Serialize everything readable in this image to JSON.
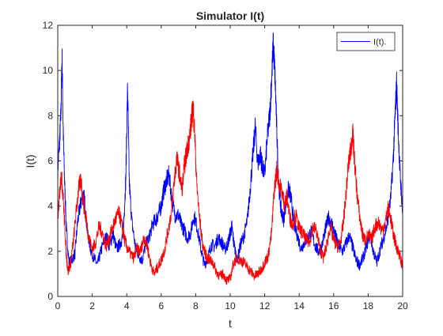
{
  "chart_data": {
    "type": "line",
    "title": "Simulator  I(t)",
    "xlabel": "t",
    "ylabel": "I(t)",
    "xlim": [
      0,
      20
    ],
    "ylim": [
      0,
      12
    ],
    "xticks": [
      0,
      2,
      4,
      6,
      8,
      10,
      12,
      14,
      16,
      18,
      20
    ],
    "yticks": [
      0,
      2,
      4,
      6,
      8,
      10,
      12
    ],
    "grid": false,
    "legend": {
      "position": "top-right",
      "entries": [
        "I(t)."
      ]
    },
    "series": [
      {
        "name": "I(t).",
        "color": "#0000ff",
        "points": [
          [
            0.0,
            5.6
          ],
          [
            0.1,
            6.8
          ],
          [
            0.18,
            8.0
          ],
          [
            0.25,
            10.6
          ],
          [
            0.32,
            7.2
          ],
          [
            0.4,
            5.0
          ],
          [
            0.5,
            3.0
          ],
          [
            0.65,
            1.5
          ],
          [
            0.8,
            1.6
          ],
          [
            1.0,
            1.9
          ],
          [
            1.15,
            3.3
          ],
          [
            1.3,
            4.0
          ],
          [
            1.45,
            4.5
          ],
          [
            1.55,
            4.3
          ],
          [
            1.7,
            3.0
          ],
          [
            1.9,
            2.1
          ],
          [
            2.1,
            1.7
          ],
          [
            2.3,
            1.4
          ],
          [
            2.5,
            2.0
          ],
          [
            2.7,
            2.5
          ],
          [
            2.85,
            2.6
          ],
          [
            3.0,
            2.2
          ],
          [
            3.2,
            2.8
          ],
          [
            3.4,
            2.1
          ],
          [
            3.6,
            2.3
          ],
          [
            3.75,
            2.6
          ],
          [
            3.85,
            3.6
          ],
          [
            3.95,
            5.3
          ],
          [
            4.05,
            9.3
          ],
          [
            4.15,
            5.0
          ],
          [
            4.3,
            3.3
          ],
          [
            4.5,
            2.2
          ],
          [
            4.7,
            1.8
          ],
          [
            4.9,
            1.6
          ],
          [
            5.1,
            2.3
          ],
          [
            5.3,
            2.6
          ],
          [
            5.5,
            3.2
          ],
          [
            5.7,
            3.4
          ],
          [
            5.85,
            3.7
          ],
          [
            6.0,
            4.0
          ],
          [
            6.15,
            4.7
          ],
          [
            6.3,
            5.1
          ],
          [
            6.45,
            5.4
          ],
          [
            6.6,
            4.4
          ],
          [
            6.8,
            3.6
          ],
          [
            7.0,
            3.6
          ],
          [
            7.15,
            3.2
          ],
          [
            7.3,
            3.0
          ],
          [
            7.5,
            2.6
          ],
          [
            7.7,
            2.8
          ],
          [
            7.9,
            3.6
          ],
          [
            8.1,
            3.0
          ],
          [
            8.3,
            2.1
          ],
          [
            8.5,
            1.4
          ],
          [
            8.7,
            1.7
          ],
          [
            8.9,
            2.3
          ],
          [
            9.1,
            2.2
          ],
          [
            9.3,
            2.6
          ],
          [
            9.5,
            2.4
          ],
          [
            9.7,
            2.1
          ],
          [
            9.85,
            2.3
          ],
          [
            10.0,
            2.8
          ],
          [
            10.1,
            3.1
          ],
          [
            10.2,
            2.4
          ],
          [
            10.4,
            1.6
          ],
          [
            10.6,
            2.3
          ],
          [
            10.8,
            2.7
          ],
          [
            11.0,
            3.4
          ],
          [
            11.15,
            4.7
          ],
          [
            11.3,
            6.1
          ],
          [
            11.45,
            7.5
          ],
          [
            11.6,
            5.9
          ],
          [
            11.75,
            6.3
          ],
          [
            11.85,
            5.8
          ],
          [
            12.0,
            5.4
          ],
          [
            12.15,
            7.0
          ],
          [
            12.3,
            8.1
          ],
          [
            12.4,
            9.6
          ],
          [
            12.5,
            11.2
          ],
          [
            12.6,
            9.7
          ],
          [
            12.7,
            7.4
          ],
          [
            12.8,
            5.1
          ],
          [
            12.95,
            3.8
          ],
          [
            13.1,
            3.4
          ],
          [
            13.25,
            4.3
          ],
          [
            13.4,
            4.8
          ],
          [
            13.55,
            4.2
          ],
          [
            13.7,
            3.2
          ],
          [
            13.9,
            2.7
          ],
          [
            14.1,
            2.1
          ],
          [
            14.3,
            2.4
          ],
          [
            14.5,
            2.6
          ],
          [
            14.7,
            2.9
          ],
          [
            14.9,
            2.3
          ],
          [
            15.1,
            2.0
          ],
          [
            15.3,
            2.2
          ],
          [
            15.5,
            2.9
          ],
          [
            15.7,
            3.5
          ],
          [
            15.9,
            3.2
          ],
          [
            16.1,
            2.7
          ],
          [
            16.3,
            2.2
          ],
          [
            16.5,
            2.0
          ],
          [
            16.7,
            2.3
          ],
          [
            16.9,
            2.7
          ],
          [
            17.1,
            2.2
          ],
          [
            17.3,
            1.6
          ],
          [
            17.5,
            1.4
          ],
          [
            17.7,
            1.7
          ],
          [
            17.9,
            2.2
          ],
          [
            18.1,
            2.8
          ],
          [
            18.3,
            2.0
          ],
          [
            18.5,
            1.5
          ],
          [
            18.7,
            2.1
          ],
          [
            18.9,
            2.6
          ],
          [
            19.1,
            3.2
          ],
          [
            19.3,
            4.3
          ],
          [
            19.45,
            6.0
          ],
          [
            19.55,
            7.8
          ],
          [
            19.65,
            9.4
          ],
          [
            19.75,
            7.2
          ],
          [
            19.85,
            5.4
          ],
          [
            19.95,
            4.3
          ],
          [
            20.0,
            3.6
          ]
        ]
      },
      {
        "name": "",
        "color": "#ff0000",
        "points": [
          [
            0.0,
            3.4
          ],
          [
            0.1,
            4.5
          ],
          [
            0.2,
            5.4
          ],
          [
            0.3,
            4.6
          ],
          [
            0.4,
            3.2
          ],
          [
            0.5,
            1.8
          ],
          [
            0.6,
            1.1
          ],
          [
            0.75,
            1.5
          ],
          [
            0.9,
            2.4
          ],
          [
            1.05,
            3.6
          ],
          [
            1.2,
            4.7
          ],
          [
            1.35,
            5.2
          ],
          [
            1.5,
            4.1
          ],
          [
            1.65,
            3.4
          ],
          [
            1.8,
            2.6
          ],
          [
            2.0,
            2.1
          ],
          [
            2.2,
            2.4
          ],
          [
            2.4,
            3.1
          ],
          [
            2.6,
            2.8
          ],
          [
            2.8,
            2.2
          ],
          [
            3.0,
            2.6
          ],
          [
            3.2,
            3.1
          ],
          [
            3.4,
            3.5
          ],
          [
            3.55,
            3.7
          ],
          [
            3.7,
            3.2
          ],
          [
            3.85,
            2.6
          ],
          [
            4.0,
            2.2
          ],
          [
            4.2,
            1.9
          ],
          [
            4.4,
            1.7
          ],
          [
            4.6,
            2.1
          ],
          [
            4.8,
            2.0
          ],
          [
            5.0,
            2.6
          ],
          [
            5.2,
            2.2
          ],
          [
            5.4,
            1.4
          ],
          [
            5.6,
            1.0
          ],
          [
            5.8,
            1.3
          ],
          [
            6.0,
            1.6
          ],
          [
            6.2,
            2.1
          ],
          [
            6.4,
            2.9
          ],
          [
            6.6,
            3.8
          ],
          [
            6.75,
            5.1
          ],
          [
            6.9,
            6.1
          ],
          [
            7.05,
            5.5
          ],
          [
            7.2,
            4.7
          ],
          [
            7.35,
            5.8
          ],
          [
            7.5,
            6.5
          ],
          [
            7.65,
            7.1
          ],
          [
            7.75,
            7.8
          ],
          [
            7.85,
            8.4
          ],
          [
            7.95,
            7.1
          ],
          [
            8.05,
            5.1
          ],
          [
            8.2,
            3.6
          ],
          [
            8.4,
            2.3
          ],
          [
            8.6,
            1.8
          ],
          [
            8.8,
            1.6
          ],
          [
            9.0,
            1.5
          ],
          [
            9.2,
            1.1
          ],
          [
            9.4,
            0.9
          ],
          [
            9.6,
            1.0
          ],
          [
            9.8,
            0.7
          ],
          [
            10.0,
            0.8
          ],
          [
            10.2,
            1.5
          ],
          [
            10.4,
            1.7
          ],
          [
            10.6,
            1.6
          ],
          [
            10.8,
            1.5
          ],
          [
            11.0,
            1.3
          ],
          [
            11.2,
            1.1
          ],
          [
            11.4,
            0.9
          ],
          [
            11.6,
            1.0
          ],
          [
            11.8,
            1.2
          ],
          [
            12.0,
            1.5
          ],
          [
            12.2,
            1.8
          ],
          [
            12.4,
            2.8
          ],
          [
            12.55,
            4.7
          ],
          [
            12.7,
            5.6
          ],
          [
            12.85,
            5.0
          ],
          [
            13.0,
            4.6
          ],
          [
            13.15,
            4.1
          ],
          [
            13.3,
            4.4
          ],
          [
            13.45,
            3.5
          ],
          [
            13.6,
            3.2
          ],
          [
            13.8,
            3.6
          ],
          [
            14.0,
            3.0
          ],
          [
            14.2,
            2.8
          ],
          [
            14.4,
            2.5
          ],
          [
            14.6,
            2.4
          ],
          [
            14.8,
            3.1
          ],
          [
            15.0,
            2.9
          ],
          [
            15.2,
            2.1
          ],
          [
            15.4,
            1.7
          ],
          [
            15.6,
            2.3
          ],
          [
            15.8,
            3.1
          ],
          [
            16.0,
            2.5
          ],
          [
            16.2,
            2.2
          ],
          [
            16.4,
            2.4
          ],
          [
            16.55,
            3.2
          ],
          [
            16.7,
            4.4
          ],
          [
            16.85,
            5.8
          ],
          [
            17.0,
            6.5
          ],
          [
            17.1,
            7.3
          ],
          [
            17.2,
            6.1
          ],
          [
            17.35,
            4.6
          ],
          [
            17.5,
            3.6
          ],
          [
            17.65,
            2.8
          ],
          [
            17.8,
            2.5
          ],
          [
            18.0,
            2.7
          ],
          [
            18.2,
            2.5
          ],
          [
            18.4,
            3.1
          ],
          [
            18.6,
            3.3
          ],
          [
            18.8,
            2.9
          ],
          [
            19.0,
            3.3
          ],
          [
            19.15,
            3.9
          ],
          [
            19.3,
            3.5
          ],
          [
            19.45,
            2.8
          ],
          [
            19.6,
            2.3
          ],
          [
            19.75,
            2.0
          ],
          [
            19.9,
            1.6
          ],
          [
            20.0,
            1.3
          ]
        ]
      }
    ]
  }
}
